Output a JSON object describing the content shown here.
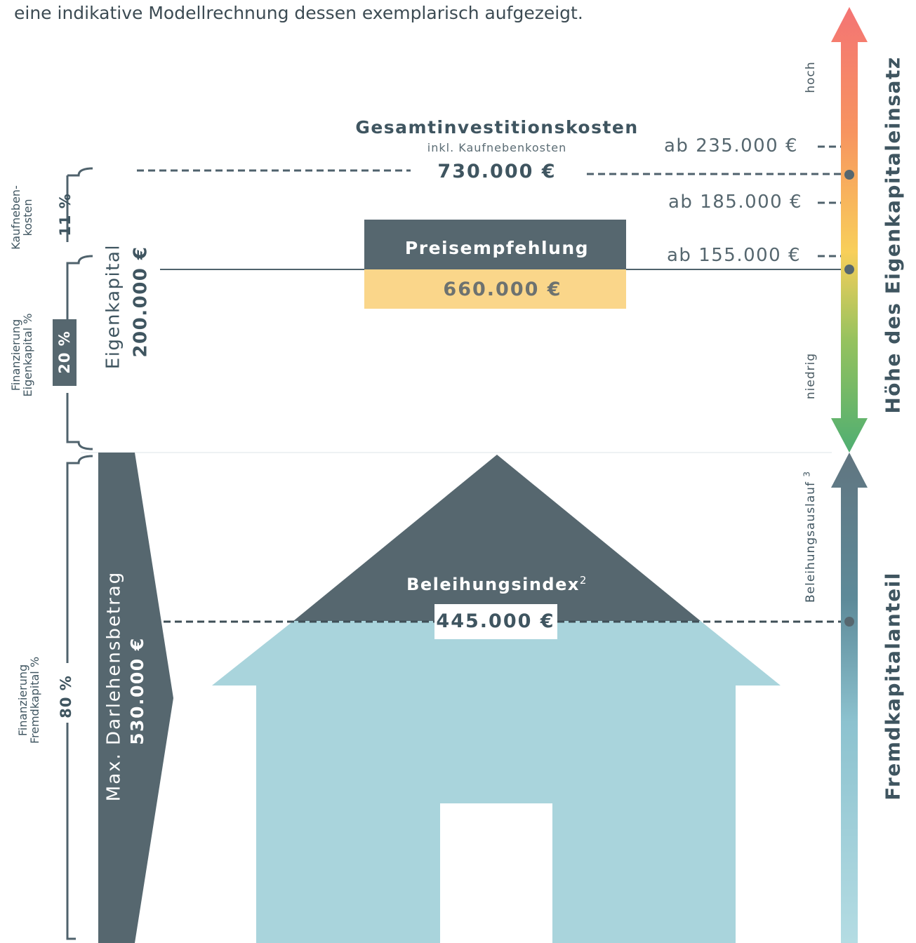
{
  "intro_text": "eine indikative Modellrechnung dessen exemplarisch aufgezeigt.",
  "total": {
    "title": "Gesamtinvestitionskosten",
    "subtitle": "inkl. Kaufnebenkosten",
    "value": "730.000 €"
  },
  "price": {
    "title": "Preisempfehlung",
    "value": "660.000 €"
  },
  "lending": {
    "title": "Beleihungsindex",
    "title_sup": "2",
    "value": "445.000 €"
  },
  "left": {
    "side_costs_label": "Kaufneben-\nkosten",
    "side_costs_pct": "11 %",
    "equity_fin_label": "Finanzierung\nEigenkapital %",
    "equity_pct": "20 %",
    "equity_label": "Eigenkapital",
    "equity_value": "200.000 €",
    "debt_fin_label": "Finanzierung\nFremdkapital %",
    "debt_pct": "80 %",
    "loan_label": "Max. Darlehensbetrag",
    "loan_value": "530.000 €"
  },
  "thresholds": [
    "ab 235.000 €",
    "ab 185.000 €",
    "ab 155.000 €"
  ],
  "scale": {
    "high": "hoch",
    "low": "niedrig",
    "lending_run": "Beleihungsauslauf",
    "lending_run_sup": "3"
  },
  "axis_titles": {
    "equity_height": "Höhe des Eigenkapitaleinsatz",
    "debt_share": "Fremdkapitalanteil"
  },
  "colors": {
    "dark": "#56676f",
    "yellow": "#fad68a",
    "light_blue": "#a9d4dc",
    "text": "#3f5560"
  }
}
